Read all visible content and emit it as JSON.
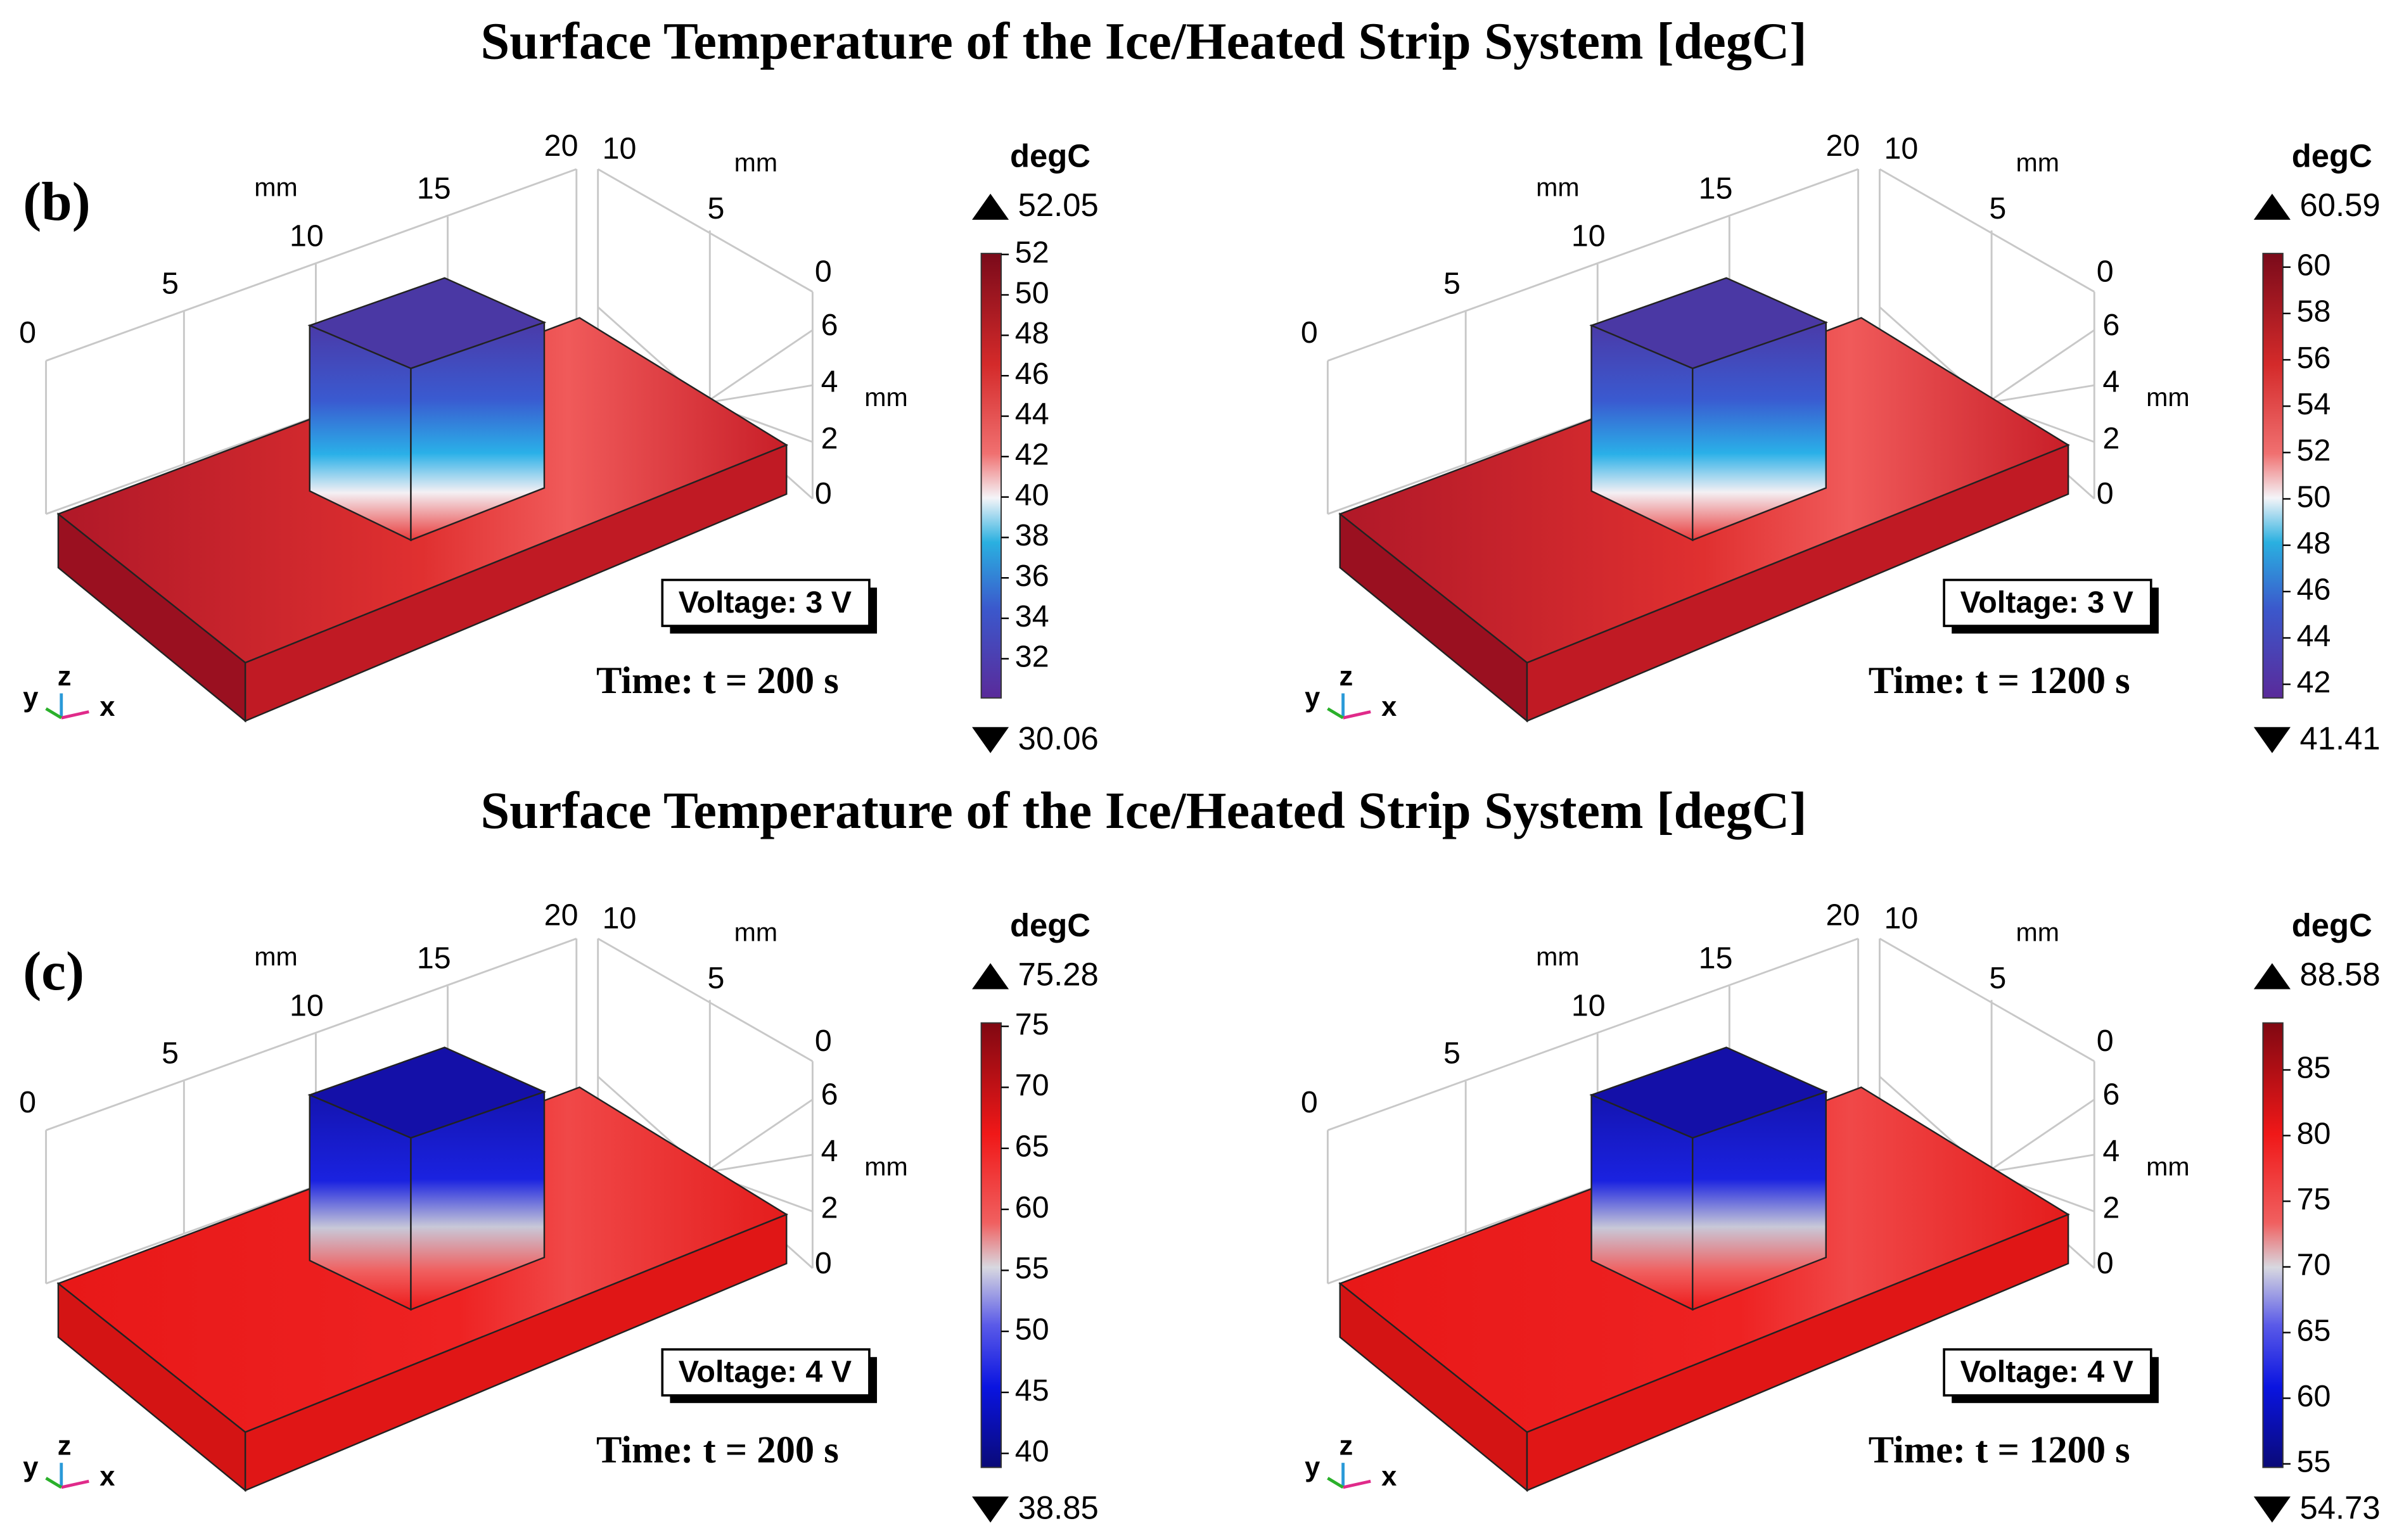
{
  "axes": {
    "x_ticks": [
      "0",
      "5",
      "10",
      "15",
      "20"
    ],
    "x_unit": "mm",
    "y_ticks": [
      "10",
      "5",
      "0"
    ],
    "y_unit": "mm",
    "z_ticks": [
      "0",
      "2",
      "4",
      "6"
    ],
    "z_unit": "mm",
    "triad": [
      "y",
      "z",
      "x"
    ]
  },
  "sections": [
    {
      "title": "Surface Temperature of the Ice/Heated Strip System [degC]",
      "label": "(b)",
      "panels": [
        {
          "colorbar": {
            "unit": "degC",
            "max": 52.05,
            "min": 30.06,
            "ticks": [
              32,
              34,
              36,
              38,
              40,
              42,
              44,
              46,
              48,
              50,
              52
            ]
          },
          "voltage": "Voltage: 3 V",
          "time": "Time: t = 200 s"
        },
        {
          "colorbar": {
            "unit": "degC",
            "max": 60.59,
            "min": 41.41,
            "ticks": [
              42,
              44,
              46,
              48,
              50,
              52,
              54,
              56,
              58,
              60
            ]
          },
          "voltage": "Voltage: 3 V",
          "time": "Time: t = 1200 s"
        }
      ]
    },
    {
      "title": "Surface Temperature of the Ice/Heated Strip System [degC]",
      "label": "(c)",
      "panels": [
        {
          "colorbar": {
            "unit": "degC",
            "max": 75.28,
            "min": 38.85,
            "ticks": [
              40,
              45,
              50,
              55,
              60,
              65,
              70,
              75
            ]
          },
          "voltage": "Voltage: 4 V",
          "time": "Time: t = 200 s"
        },
        {
          "colorbar": {
            "unit": "degC",
            "max": 88.58,
            "min": 54.73,
            "ticks": [
              55,
              60,
              65,
              70,
              75,
              80,
              85
            ]
          },
          "voltage": "Voltage: 4 V",
          "time": "Time: t = 1200 s"
        }
      ]
    }
  ]
}
